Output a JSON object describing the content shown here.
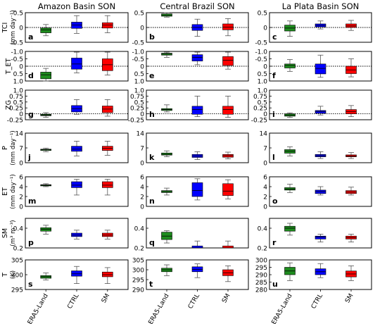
{
  "chart_data": {
    "type": "box",
    "figure_type": "grid of box plots, 7 variables x 3 regions",
    "columns": [
      "Amazon Basin SON",
      "Central Brazil SON",
      "La Plata Basin SON"
    ],
    "models": [
      "ERA5-Land",
      "CTRL",
      "SM"
    ],
    "model_colors": {
      "ERA5-Land": "#1e8c1e",
      "CTRL": "#0000ff",
      "SM": "#ff0000"
    },
    "zero_line": "dotted",
    "rows": [
      {
        "name": "TCI",
        "ylabel": "TCI",
        "unit": "(mm day⁻¹)",
        "ylim": [
          -0.5,
          0.5
        ],
        "inverted": false,
        "ticks": [
          -0.5,
          0,
          0.5
        ],
        "tick_labels": [
          "-0.5",
          "0",
          "0.5"
        ],
        "letters": [
          "a",
          "b",
          "c"
        ],
        "zero_line": true,
        "boxes": [
          [
            {
              "whislo": -0.28,
              "q1": -0.18,
              "med": -0.08,
              "q3": -0.02,
              "whishi": 0.1
            },
            {
              "whislo": -0.2,
              "q1": -0.03,
              "med": 0.08,
              "q3": 0.18,
              "whishi": 0.4
            },
            {
              "whislo": -0.18,
              "q1": -0.02,
              "med": 0.08,
              "q3": 0.16,
              "whishi": 0.4
            }
          ],
          [
            {
              "whislo": 0.35,
              "q1": 0.38,
              "med": 0.42,
              "q3": 0.46,
              "whishi": 0.55
            },
            {
              "whislo": -0.3,
              "q1": -0.1,
              "med": 0.0,
              "q3": 0.1,
              "whishi": 0.28
            },
            {
              "whislo": -0.28,
              "q1": -0.08,
              "med": 0.01,
              "q3": 0.12,
              "whishi": 0.3
            }
          ],
          [
            {
              "whislo": -0.3,
              "q1": -0.12,
              "med": -0.02,
              "q3": 0.08,
              "whishi": 0.22
            },
            {
              "whislo": -0.05,
              "q1": 0.02,
              "med": 0.07,
              "q3": 0.12,
              "whishi": 0.22
            },
            {
              "whislo": -0.1,
              "q1": 0.0,
              "med": 0.05,
              "q3": 0.12,
              "whishi": 0.24
            }
          ]
        ]
      },
      {
        "name": "T_ET",
        "ylabel": "T_ET",
        "unit": "",
        "ylim": [
          -1.0,
          1.0
        ],
        "inverted": true,
        "ticks": [
          -1.0,
          -0.5,
          0,
          0.5,
          1.0
        ],
        "tick_labels": [
          "-1.0",
          "-0.5",
          "0",
          "0.5",
          "1.0"
        ],
        "letters": [
          "d",
          "e",
          "f"
        ],
        "zero_line": true,
        "boxes": [
          [
            {
              "whislo": 0.15,
              "q1": 0.4,
              "med": 0.58,
              "q3": 0.85,
              "whishi": 1.0
            },
            {
              "whislo": -0.95,
              "q1": -0.55,
              "med": -0.15,
              "q3": 0.2,
              "whishi": 0.45
            },
            {
              "whislo": -0.95,
              "q1": -0.5,
              "med": -0.1,
              "q3": 0.3,
              "whishi": 0.6
            }
          ],
          [
            {
              "whislo": -0.95,
              "q1": -0.88,
              "med": -0.82,
              "q3": -0.75,
              "whishi": -0.6
            },
            {
              "whislo": -0.95,
              "q1": -0.78,
              "med": -0.6,
              "q3": -0.35,
              "whishi": -0.1
            },
            {
              "whislo": -0.95,
              "q1": -0.65,
              "med": -0.4,
              "q3": -0.05,
              "whishi": 0.2
            }
          ],
          [
            {
              "whislo": -0.45,
              "q1": -0.15,
              "med": -0.05,
              "q3": 0.12,
              "whishi": 0.35
            },
            {
              "whislo": -0.75,
              "q1": -0.15,
              "med": 0.15,
              "q3": 0.52,
              "whishi": 0.75
            },
            {
              "whislo": -0.5,
              "q1": 0.0,
              "med": 0.25,
              "q3": 0.5,
              "whishi": 0.72
            }
          ]
        ]
      },
      {
        "name": "ZG",
        "ylabel": "ZG",
        "unit": "",
        "ylim": [
          -0.25,
          1.0
        ],
        "inverted": false,
        "ticks": [
          -0.25,
          0,
          0.25,
          0.5,
          0.75,
          1.0
        ],
        "tick_labels": [
          "-0.25",
          "0",
          "0.25",
          "0.5",
          "0.75",
          "1.0"
        ],
        "letters": [
          "g",
          "h",
          "i"
        ],
        "zero_line": true,
        "boxes": [
          [
            {
              "whislo": -0.15,
              "q1": -0.08,
              "med": -0.05,
              "q3": -0.02,
              "whishi": 0.05
            },
            {
              "whislo": -0.02,
              "q1": 0.08,
              "med": 0.22,
              "q3": 0.35,
              "whishi": 0.6
            },
            {
              "whislo": -0.1,
              "q1": 0.05,
              "med": 0.2,
              "q3": 0.33,
              "whishi": 0.6
            }
          ],
          [
            {
              "whislo": 0.08,
              "q1": 0.14,
              "med": 0.18,
              "q3": 0.22,
              "whishi": 0.38
            },
            {
              "whislo": -0.12,
              "q1": -0.02,
              "med": 0.18,
              "q3": 0.32,
              "whishi": 0.75
            },
            {
              "whislo": -0.15,
              "q1": -0.02,
              "med": 0.18,
              "q3": 0.32,
              "whishi": 0.75
            }
          ],
          [
            {
              "whislo": -0.15,
              "q1": -0.1,
              "med": -0.05,
              "q3": 0.0,
              "whishi": 0.04
            },
            {
              "whislo": -0.05,
              "q1": 0.02,
              "med": 0.1,
              "q3": 0.14,
              "whishi": 0.32
            },
            {
              "whislo": -0.12,
              "q1": 0.0,
              "med": 0.1,
              "q3": 0.18,
              "whishi": 0.35
            }
          ]
        ]
      },
      {
        "name": "P",
        "ylabel": "P",
        "unit": "(mm day⁻¹)",
        "ylim": [
          0,
          14
        ],
        "inverted": false,
        "ticks": [
          0,
          7,
          14
        ],
        "tick_labels": [
          "0",
          "7",
          "14"
        ],
        "letters": [
          "j",
          "k",
          "l"
        ],
        "zero_line": false,
        "boxes": [
          [
            {
              "whislo": 5.2,
              "q1": 5.8,
              "med": 6.1,
              "q3": 6.4,
              "whishi": 6.9
            },
            {
              "whislo": 3.2,
              "q1": 5.4,
              "med": 6.4,
              "q3": 7.8,
              "whishi": 10.2
            },
            {
              "whislo": 3.5,
              "q1": 5.8,
              "med": 6.8,
              "q3": 7.8,
              "whishi": 10.2
            }
          ],
          [
            {
              "whislo": 2.8,
              "q1": 3.6,
              "med": 4.0,
              "q3": 4.6,
              "whishi": 5.6
            },
            {
              "whislo": 1.5,
              "q1": 2.5,
              "med": 3.2,
              "q3": 3.9,
              "whishi": 5.2
            },
            {
              "whislo": 1.8,
              "q1": 2.6,
              "med": 3.3,
              "q3": 3.9,
              "whishi": 5.0
            }
          ],
          [
            {
              "whislo": 3.2,
              "q1": 4.5,
              "med": 5.4,
              "q3": 6.2,
              "whishi": 7.5
            },
            {
              "whislo": 2.0,
              "q1": 2.8,
              "med": 3.3,
              "q3": 3.9,
              "whishi": 5.2
            },
            {
              "whislo": 2.0,
              "q1": 2.8,
              "med": 3.2,
              "q3": 3.7,
              "whishi": 4.8
            }
          ]
        ]
      },
      {
        "name": "ET",
        "ylabel": "ET",
        "unit": "(mm day⁻¹)",
        "ylim": [
          0,
          6
        ],
        "inverted": false,
        "ticks": [
          0,
          2,
          4,
          6
        ],
        "tick_labels": [
          "0",
          "2",
          "4",
          "6"
        ],
        "letters": [
          "m",
          "n",
          "o"
        ],
        "zero_line": false,
        "boxes": [
          [
            {
              "whislo": 4.0,
              "q1": 4.15,
              "med": 4.3,
              "q3": 4.4,
              "whishi": 4.6
            },
            {
              "whislo": 2.3,
              "q1": 3.8,
              "med": 4.3,
              "q3": 5.0,
              "whishi": 5.5
            },
            {
              "whislo": 2.3,
              "q1": 3.8,
              "med": 4.3,
              "q3": 5.0,
              "whishi": 5.5
            }
          ],
          [
            {
              "whislo": 2.3,
              "q1": 2.8,
              "med": 3.0,
              "q3": 3.2,
              "whishi": 3.7
            },
            {
              "whislo": 1.3,
              "q1": 2.0,
              "med": 3.2,
              "q3": 4.8,
              "whishi": 5.6
            },
            {
              "whislo": 1.5,
              "q1": 2.2,
              "med": 3.1,
              "q3": 4.6,
              "whishi": 5.4
            }
          ],
          [
            {
              "whislo": 2.8,
              "q1": 3.3,
              "med": 3.5,
              "q3": 3.8,
              "whishi": 4.5
            },
            {
              "whislo": 2.3,
              "q1": 2.6,
              "med": 3.0,
              "q3": 3.3,
              "whishi": 4.0
            },
            {
              "whislo": 2.3,
              "q1": 2.6,
              "med": 2.9,
              "q3": 3.2,
              "whishi": 3.9
            }
          ]
        ]
      },
      {
        "name": "SM",
        "ylabel": "SM",
        "unit": "(m³ m⁻³)",
        "ylim": [
          0.2,
          0.5
        ],
        "inverted": false,
        "ticks": [
          0.2,
          0.4
        ],
        "tick_labels": [
          "0.2",
          "0.4"
        ],
        "letters": [
          "p",
          "q",
          "r"
        ],
        "zero_line": false,
        "boxes": [
          [
            {
              "whislo": 0.34,
              "q1": 0.37,
              "med": 0.39,
              "q3": 0.405,
              "whishi": 0.43
            },
            {
              "whislo": 0.29,
              "q1": 0.315,
              "med": 0.33,
              "q3": 0.35,
              "whishi": 0.38
            },
            {
              "whislo": 0.29,
              "q1": 0.315,
              "med": 0.33,
              "q3": 0.35,
              "whishi": 0.38
            }
          ],
          [
            {
              "whislo": 0.25,
              "q1": 0.285,
              "med": 0.32,
              "q3": 0.36,
              "whishi": 0.375
            },
            {
              "whislo": 0.14,
              "q1": 0.175,
              "med": 0.195,
              "q3": 0.22,
              "whishi": 0.27
            },
            {
              "whislo": 0.14,
              "q1": 0.175,
              "med": 0.195,
              "q3": 0.22,
              "whishi": 0.27
            }
          ],
          [
            {
              "whislo": 0.33,
              "q1": 0.37,
              "med": 0.4,
              "q3": 0.42,
              "whishi": 0.45
            },
            {
              "whislo": 0.26,
              "q1": 0.29,
              "med": 0.31,
              "q3": 0.32,
              "whishi": 0.34
            },
            {
              "whislo": 0.26,
              "q1": 0.29,
              "med": 0.305,
              "q3": 0.32,
              "whishi": 0.34
            }
          ]
        ]
      },
      {
        "name": "T",
        "ylabel": "T",
        "unit": "(K)",
        "ylims": [
          [
            295,
            305
          ],
          [
            290,
            305
          ],
          [
            280,
            300
          ]
        ],
        "inverted": false,
        "ticks_per_col": [
          [
            295,
            300,
            305
          ],
          [
            290,
            295,
            300,
            305
          ],
          [
            280,
            285,
            290,
            295,
            300
          ]
        ],
        "letters": [
          "s",
          "t",
          "u"
        ],
        "zero_line": false,
        "boxes": [
          [
            {
              "whislo": 298.2,
              "q1": 298.8,
              "med": 299.3,
              "q3": 299.7,
              "whishi": 300.6
            },
            {
              "whislo": 297.0,
              "q1": 299.5,
              "med": 300.3,
              "q3": 301.3,
              "whishi": 302.8
            },
            {
              "whislo": 297.0,
              "q1": 299.3,
              "med": 300.0,
              "q3": 300.9,
              "whishi": 302.4
            }
          ],
          [
            {
              "whislo": 297.0,
              "q1": 299.0,
              "med": 300.0,
              "q3": 300.8,
              "whishi": 302.5
            },
            {
              "whislo": 296.0,
              "q1": 299.0,
              "med": 300.2,
              "q3": 301.5,
              "whishi": 303.0
            },
            {
              "whislo": 294.0,
              "q1": 297.0,
              "med": 298.5,
              "q3": 300.0,
              "whishi": 302.0
            }
          ],
          [
            {
              "whislo": 286.0,
              "q1": 290.0,
              "med": 292.5,
              "q3": 295.0,
              "whishi": 298.0
            },
            {
              "whislo": 288.0,
              "q1": 290.0,
              "med": 292.0,
              "q3": 294.0,
              "whishi": 297.5
            },
            {
              "whislo": 286.0,
              "q1": 288.5,
              "med": 290.5,
              "q3": 292.5,
              "whishi": 296.0
            }
          ]
        ]
      }
    ]
  }
}
